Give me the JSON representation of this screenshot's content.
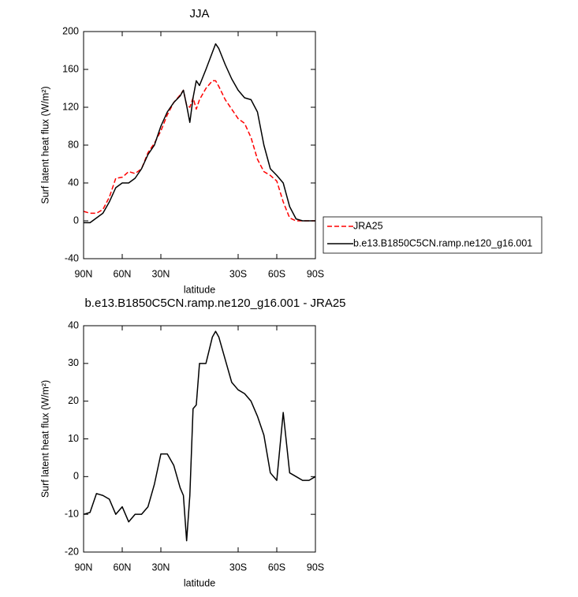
{
  "chart_data": [
    {
      "type": "line",
      "title": "JJA",
      "xlabel": "latitude",
      "ylabel": "Surf latent heat flux (W/m²)",
      "x": [
        90,
        85,
        80,
        75,
        70,
        65,
        60,
        55,
        50,
        45,
        40,
        35,
        30,
        25,
        20,
        15,
        12.5,
        10,
        7.5,
        5,
        2.5,
        0,
        -5,
        -10,
        -12.5,
        -15,
        -20,
        -25,
        -30,
        -35,
        -40,
        -45,
        -50,
        -55,
        -60,
        -65,
        -70,
        -75,
        -80,
        -85,
        -90
      ],
      "series": [
        {
          "name": "JRA25",
          "color": "#ff0000",
          "line_style": "dashed",
          "values": [
            10,
            8,
            8,
            12,
            25,
            45,
            46,
            52,
            50,
            55,
            72,
            82,
            95,
            112,
            125,
            133,
            138,
            122,
            120,
            130,
            118,
            128,
            140,
            148,
            148,
            142,
            128,
            118,
            108,
            103,
            88,
            65,
            52,
            48,
            42,
            20,
            3,
            0,
            0,
            0,
            0
          ]
        },
        {
          "name": "b.e13.B1850C5CN.ramp.ne120_g16.001",
          "color": "#000000",
          "line_style": "solid",
          "values": [
            -2,
            -2,
            3,
            8,
            20,
            35,
            40,
            40,
            45,
            55,
            70,
            80,
            100,
            115,
            125,
            132,
            138,
            122,
            104,
            130,
            148,
            143,
            160,
            178,
            187,
            182,
            165,
            150,
            138,
            130,
            128,
            115,
            80,
            55,
            48,
            40,
            15,
            2,
            0,
            0,
            0
          ]
        }
      ],
      "xlim": [
        90,
        -90
      ],
      "xticks": [
        {
          "value": 90,
          "label": "90N"
        },
        {
          "value": 60,
          "label": "60N"
        },
        {
          "value": 30,
          "label": "30N"
        },
        {
          "value": -30,
          "label": "30S"
        },
        {
          "value": -60,
          "label": "60S"
        },
        {
          "value": -90,
          "label": "90S"
        }
      ],
      "ylim": [
        -40,
        200
      ],
      "yticks": [
        -40,
        0,
        40,
        80,
        120,
        160,
        200
      ],
      "legend": "outside-right"
    },
    {
      "type": "line",
      "title": "b.e13.B1850C5CN.ramp.ne120_g16.001 - JRA25",
      "xlabel": "latitude",
      "ylabel": "Surf latent heat flux (W/m²)",
      "x": [
        90,
        85,
        80,
        75,
        70,
        65,
        60,
        55,
        50,
        45,
        40,
        35,
        30,
        25,
        20,
        15,
        12.5,
        10,
        7.5,
        5,
        2.5,
        0,
        -5,
        -10,
        -12.5,
        -15,
        -20,
        -25,
        -30,
        -35,
        -40,
        -45,
        -50,
        -55,
        -60,
        -65,
        -70,
        -75,
        -80,
        -85,
        -90
      ],
      "values": [
        -10,
        -9.5,
        -4.5,
        -5,
        -6,
        -10,
        -8,
        -12,
        -10,
        -10,
        -8,
        -2,
        6,
        6,
        3,
        -3,
        -5,
        -17,
        -5,
        18,
        19,
        30,
        30,
        37,
        38.5,
        37,
        31,
        25,
        23,
        22,
        20,
        16,
        11,
        1,
        -1,
        17,
        1,
        0,
        -1,
        -1,
        0
      ],
      "color": "#000000",
      "xlim": [
        90,
        -90
      ],
      "xticks": [
        {
          "value": 90,
          "label": "90N"
        },
        {
          "value": 60,
          "label": "60N"
        },
        {
          "value": 30,
          "label": "30N"
        },
        {
          "value": -30,
          "label": "30S"
        },
        {
          "value": -60,
          "label": "60S"
        },
        {
          "value": -90,
          "label": "90S"
        }
      ],
      "ylim": [
        -20,
        40
      ],
      "yticks": [
        -20,
        -10,
        0,
        10,
        20,
        30,
        40
      ]
    }
  ]
}
